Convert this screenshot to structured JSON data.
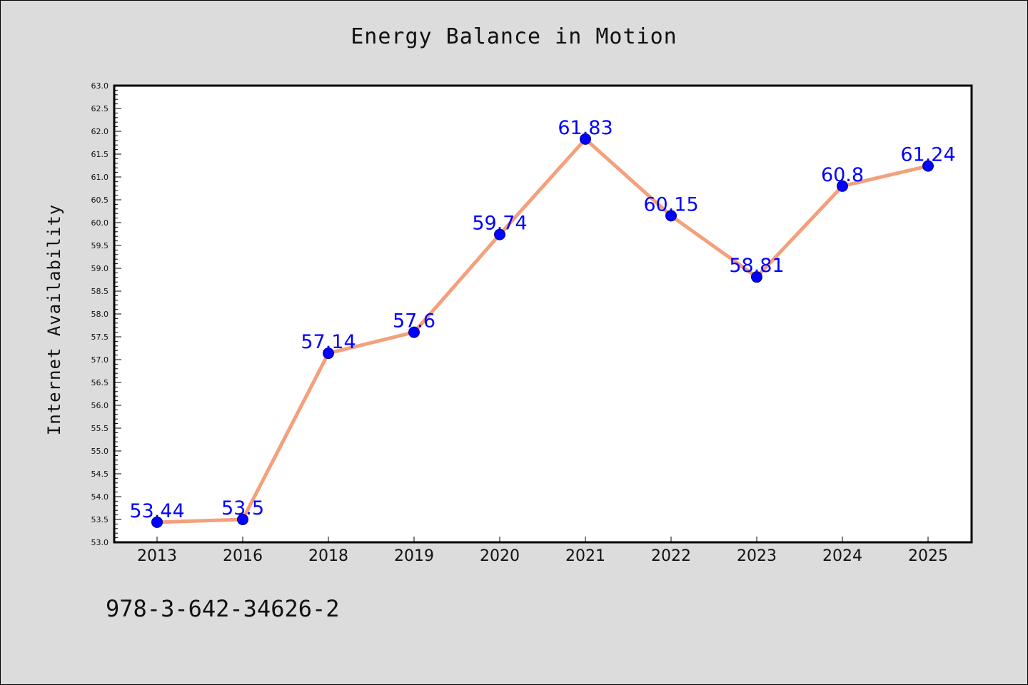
{
  "chart_data": {
    "type": "line",
    "title": "Energy Balance in Motion",
    "xlabel": "",
    "ylabel": "Internet Availability",
    "categories": [
      "2013",
      "2016",
      "2018",
      "2019",
      "2020",
      "2021",
      "2022",
      "2023",
      "2024",
      "2025"
    ],
    "values": [
      53.44,
      53.5,
      57.14,
      57.6,
      59.74,
      61.83,
      60.15,
      58.81,
      60.8,
      61.24
    ],
    "data_labels": [
      "53.44",
      "53.5",
      "57.14",
      "57.6",
      "59.74",
      "61.83",
      "60.15",
      "58.81",
      "60.8",
      "61.24"
    ],
    "ylim": [
      53.0,
      63.0
    ],
    "yticks": [
      "53.0",
      "53.5",
      "54.0",
      "54.5",
      "55.0",
      "55.5",
      "56.0",
      "56.5",
      "57.0",
      "57.5",
      "58.0",
      "58.5",
      "59.0",
      "59.5",
      "60.0",
      "60.5",
      "61.0",
      "61.5",
      "62.0",
      "62.5",
      "63.0"
    ],
    "grid": false,
    "legend": "none",
    "line_color": "#f4a07c",
    "marker_color": "#0000ff",
    "label_color": "#0000ff",
    "plot_background": "#ffffff",
    "figure_background": "#dcdcdc"
  },
  "footer": {
    "isbn": "978-3-642-34626-2"
  }
}
